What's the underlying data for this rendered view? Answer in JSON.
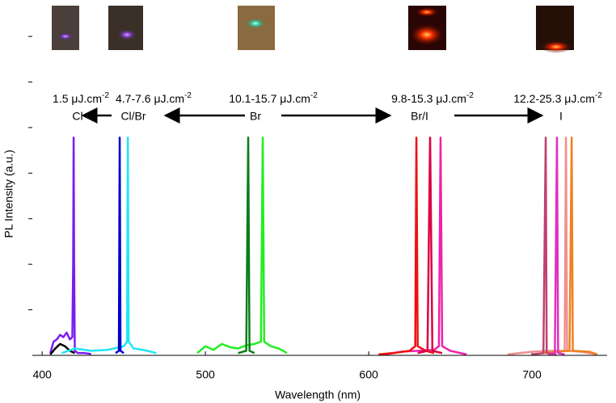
{
  "chart_data": {
    "type": "line",
    "x_label": "Wavelength (nm)",
    "y_label": "PL Intensity (a.u.)",
    "xlim": [
      394,
      746
    ],
    "xticks": [
      400,
      500,
      600,
      700
    ],
    "ylim": [
      0,
      7.8
    ],
    "yticks": [
      1,
      2,
      3,
      4,
      5,
      6,
      7
    ],
    "annotations": [
      {
        "text": "1.5 μJ.cm",
        "sup": "-2",
        "label": "Cl"
      },
      {
        "text": "4.7-7.6 μJ.cm",
        "sup": "-2",
        "label": "Cl/Br"
      },
      {
        "text": "10.1-15.7 μJ.cm",
        "sup": "-2",
        "label": "Br"
      },
      {
        "text": "9.8-15.3 μJ.cm",
        "sup": "-2",
        "label": "Br/I"
      },
      {
        "text": "12.2-25.3 μJ.cm",
        "sup": "-2",
        "label": "I"
      }
    ],
    "series": [
      {
        "color": "#7a1cf0",
        "x": [
          405,
          407,
          409,
          411,
          413,
          415,
          417,
          418.5,
          419,
          419.3,
          419.6,
          420,
          422,
          426,
          430
        ],
        "values": [
          0.05,
          0.3,
          0.35,
          0.45,
          0.4,
          0.5,
          0.35,
          0.4,
          2,
          4.78,
          2,
          0.1,
          0.05,
          0.05,
          0.03
        ]
      },
      {
        "color": "#000000",
        "x": [
          405,
          408,
          411,
          414,
          417,
          420
        ],
        "values": [
          0.02,
          0.15,
          0.25,
          0.2,
          0.1,
          0.05
        ]
      },
      {
        "color": "#22e5f5",
        "x": [
          412,
          420,
          430,
          440,
          450,
          452,
          452.5,
          453,
          456,
          462,
          470
        ],
        "values": [
          0.05,
          0.15,
          0.1,
          0.12,
          0.2,
          0.3,
          4.78,
          0.3,
          0.15,
          0.12,
          0.05
        ]
      },
      {
        "color": "#0000cc",
        "x": [
          445,
          447,
          447.5,
          448,
          450
        ],
        "values": [
          0.05,
          0.1,
          4.78,
          0.1,
          0.05
        ]
      },
      {
        "color": "#22ee22",
        "x": [
          495,
          500,
          505,
          510,
          515,
          520,
          525,
          530,
          534,
          535.1,
          536,
          540,
          545,
          550
        ],
        "values": [
          0.05,
          0.2,
          0.12,
          0.25,
          0.18,
          0.15,
          0.22,
          0.25,
          0.3,
          4.78,
          0.3,
          0.2,
          0.15,
          0.05
        ]
      },
      {
        "color": "#0a7d1a",
        "x": [
          520,
          525,
          526.2,
          527,
          530
        ],
        "values": [
          0.05,
          0.1,
          4.78,
          0.1,
          0.05
        ]
      },
      {
        "color": "#ee22aa",
        "x": [
          610,
          620,
          630,
          640,
          643,
          644,
          645,
          650,
          660
        ],
        "values": [
          0.02,
          0.08,
          0.1,
          0.12,
          0.2,
          4.78,
          0.2,
          0.1,
          0.02
        ]
      },
      {
        "color": "#ee1111",
        "x": [
          606,
          615,
          625,
          628.5,
          629.2,
          630,
          635,
          640
        ],
        "values": [
          0.02,
          0.05,
          0.1,
          0.2,
          4.78,
          0.2,
          0.1,
          0.05
        ]
      },
      {
        "color": "#dd0044",
        "x": [
          630,
          636,
          637.6,
          639,
          645
        ],
        "values": [
          0.05,
          0.1,
          4.78,
          0.1,
          0.05
        ]
      },
      {
        "color": "#f09090",
        "x": [
          685,
          700,
          710,
          720,
          720.8,
          721.5,
          730,
          740
        ],
        "values": [
          0.02,
          0.08,
          0.1,
          0.1,
          4.78,
          0.1,
          0.08,
          0.02
        ]
      },
      {
        "color": "#f08020",
        "x": [
          700,
          715,
          723,
          724.3,
          725,
          735,
          740
        ],
        "values": [
          0.02,
          0.08,
          0.1,
          4.78,
          0.1,
          0.08,
          0.02
        ]
      },
      {
        "color": "#c04070",
        "x": [
          700,
          707,
          708.4,
          709,
          715
        ],
        "values": [
          0.02,
          0.05,
          4.78,
          0.05,
          0.02
        ]
      },
      {
        "color": "#e030c0",
        "x": [
          710,
          714,
          715.3,
          716,
          720
        ],
        "values": [
          0.02,
          0.05,
          4.78,
          0.05,
          0.02
        ]
      }
    ]
  }
}
